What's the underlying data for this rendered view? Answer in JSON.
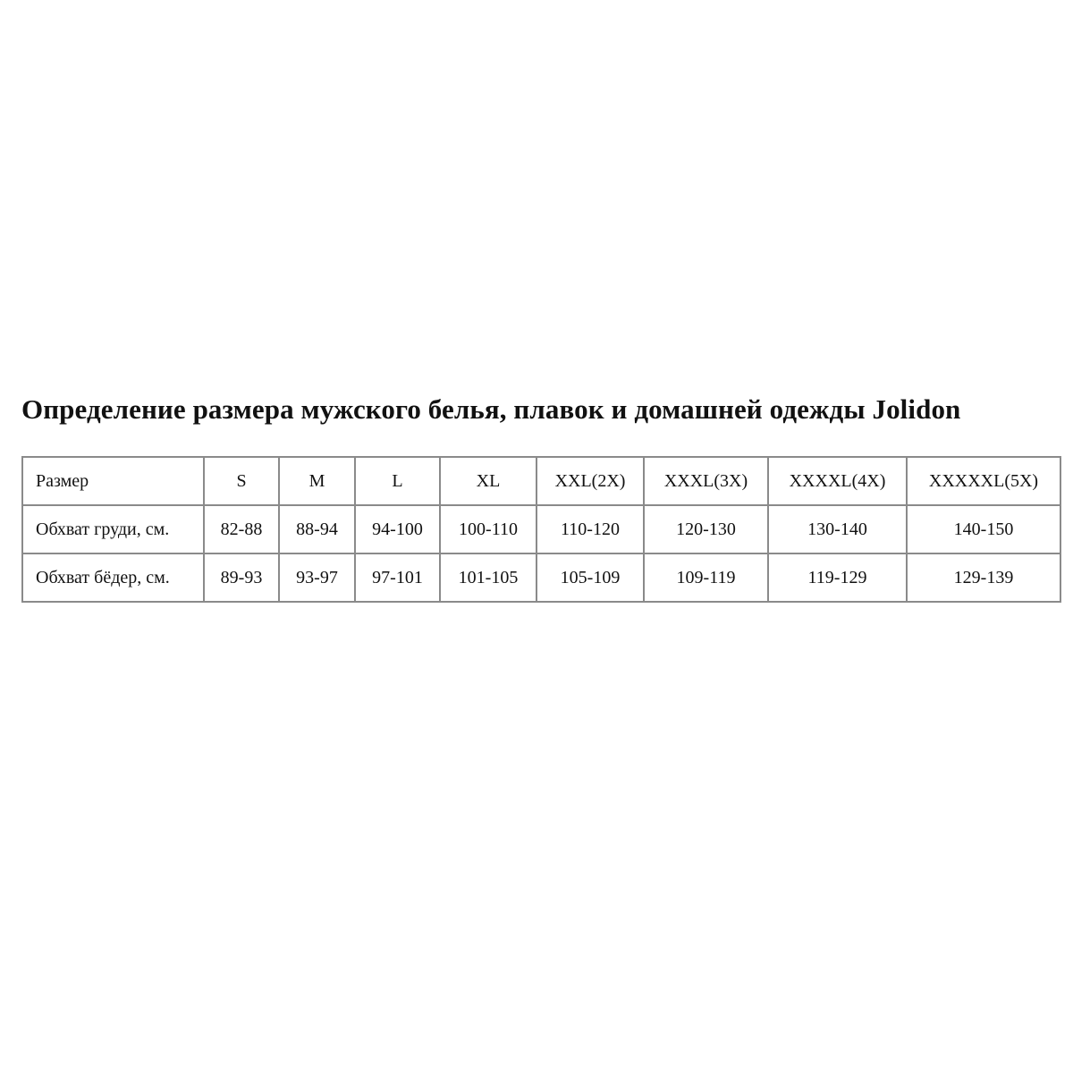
{
  "title": "Определение размера мужского белья, плавок и домашней одежды Jolidon",
  "table": {
    "rows": [
      {
        "label": "Размер",
        "cells": [
          "S",
          "M",
          "L",
          "XL",
          "XXL(2X)",
          "XXXL(3X)",
          "XXXXL(4X)",
          "XXXXXL(5X)"
        ]
      },
      {
        "label": "Обхват груди, см.",
        "cells": [
          "82-88",
          "88-94",
          "94-100",
          "100-110",
          "110-120",
          "120-130",
          "130-140",
          "140-150"
        ]
      },
      {
        "label": "Обхват бёдер, см.",
        "cells": [
          "89-93",
          "93-97",
          "97-101",
          "101-105",
          "105-109",
          "109-119",
          "119-129",
          "129-139"
        ]
      }
    ]
  }
}
